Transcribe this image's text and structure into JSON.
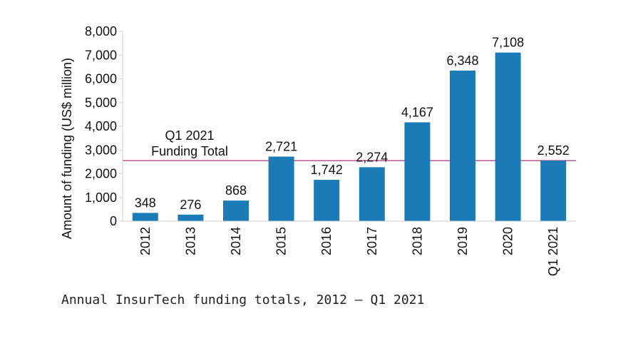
{
  "chart_data": {
    "type": "bar",
    "categories": [
      "2012",
      "2013",
      "2014",
      "2015",
      "2016",
      "2017",
      "2018",
      "2019",
      "2020",
      "Q1 2021"
    ],
    "values": [
      348,
      276,
      868,
      2721,
      1742,
      2274,
      4167,
      6348,
      7108,
      2552
    ],
    "value_labels": [
      "348",
      "276",
      "868",
      "2,721",
      "1,742",
      "2,274",
      "4,167",
      "6,348",
      "7,108",
      "2,552"
    ],
    "ylabel": "Amount of funding (US$ million)",
    "ylim": [
      0,
      8000
    ],
    "yticks": [
      0,
      1000,
      2000,
      3000,
      4000,
      5000,
      6000,
      7000,
      8000
    ],
    "ytick_labels": [
      "0",
      "1,000",
      "2,000",
      "3,000",
      "4,000",
      "5,000",
      "6,000",
      "7,000",
      "8,000"
    ],
    "reference_line": {
      "value": 2552,
      "label_line1": "Q1 2021",
      "label_line2": "Funding Total",
      "color": "#b0307a"
    },
    "bar_color": "#1a7bb6",
    "grid": false
  },
  "caption": "Annual InsurTech funding totals, 2012 – Q1 2021"
}
